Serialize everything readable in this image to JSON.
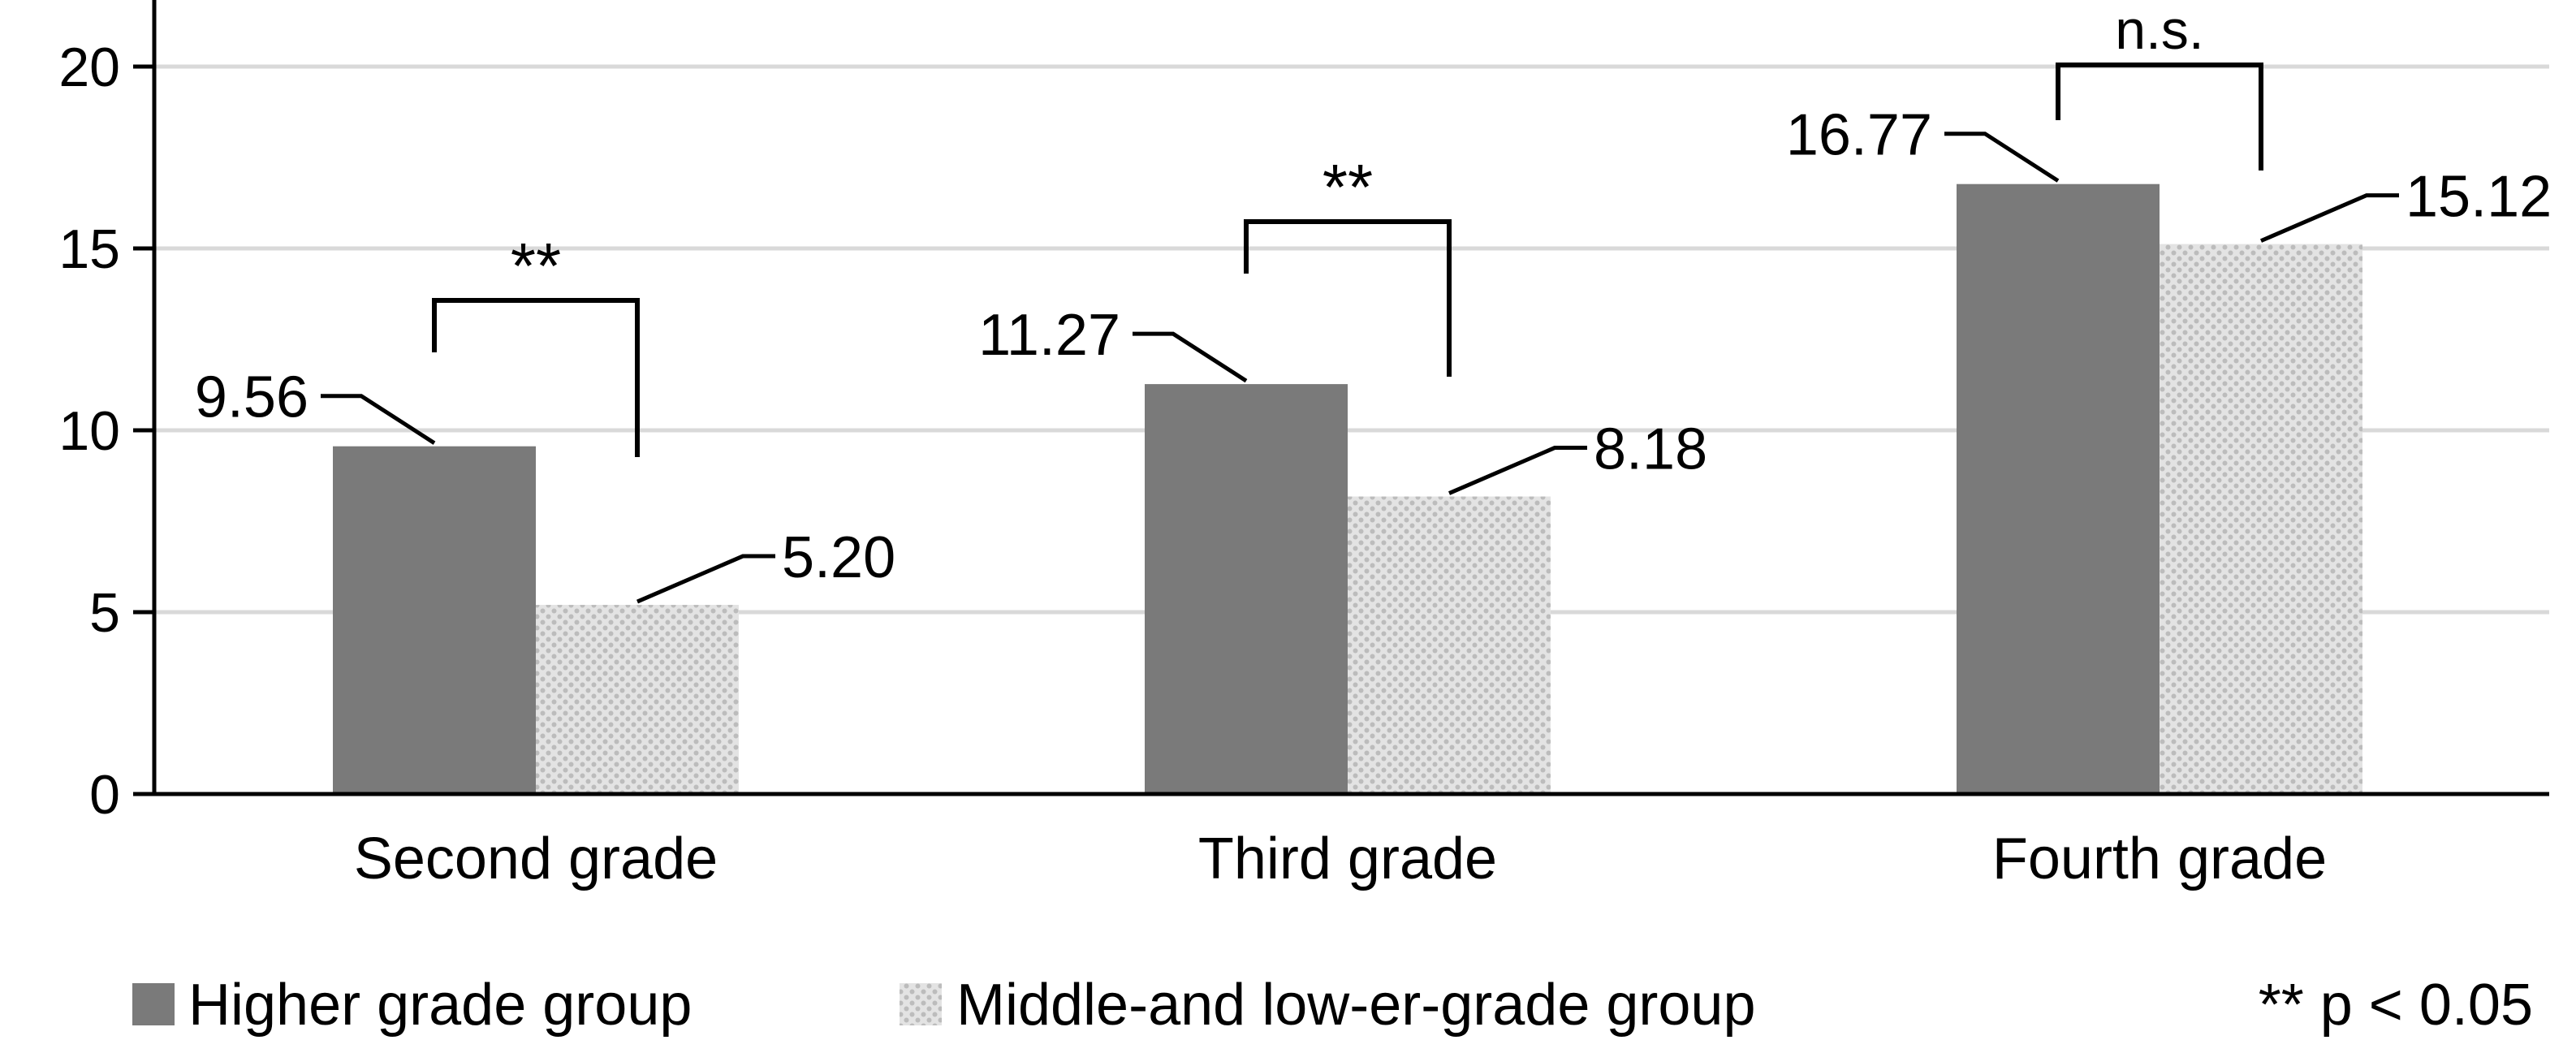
{
  "chart_data": {
    "type": "bar",
    "categories": [
      "Second grade",
      "Third grade",
      "Fourth grade"
    ],
    "series": [
      {
        "name": "Higher grade group",
        "values": [
          9.56,
          11.27,
          16.77
        ],
        "labels": [
          "9.56",
          "11.27",
          "16.77"
        ],
        "fill": "solid"
      },
      {
        "name": "Middle-and low-er-grade group",
        "values": [
          5.2,
          8.18,
          15.12
        ],
        "labels": [
          "5.20",
          "8.18",
          "15.12"
        ],
        "fill": "dotted"
      }
    ],
    "ylim": [
      0,
      20
    ],
    "yticks": [
      0,
      5,
      10,
      15,
      20
    ],
    "ytick_labels": [
      "0",
      "5",
      "10",
      "15",
      "20"
    ],
    "grid": true,
    "legend_position": "bottom",
    "significance": [
      "**",
      "**",
      "n.s."
    ],
    "footnote": "** p < 0.05",
    "colors": {
      "higher": "#7a7a7a",
      "lower_fg": "#bdbdbd",
      "lower_bg": "#e3e3e3",
      "grid": "#d9d9d9",
      "axis": "#000000"
    }
  }
}
